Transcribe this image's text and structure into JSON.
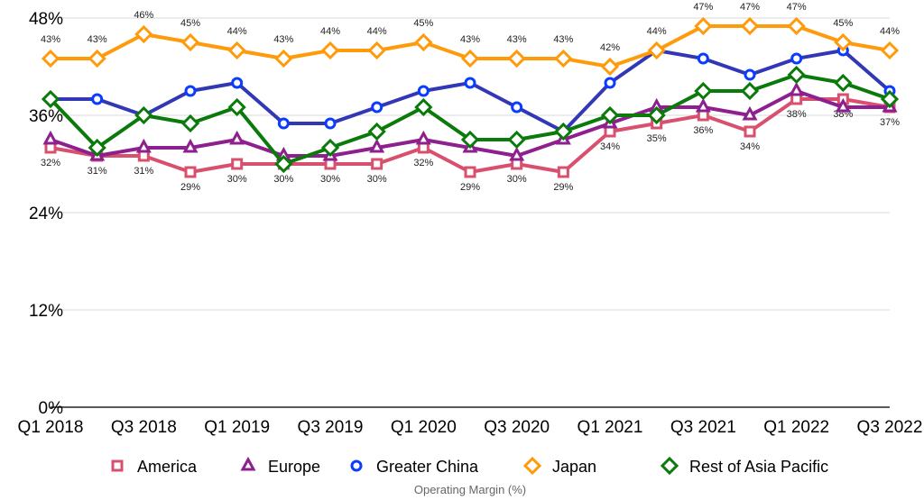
{
  "chart_data": {
    "type": "line",
    "title": "",
    "xlabel": "",
    "ylabel": "",
    "caption": "Operating Margin (%)",
    "ylim": [
      0,
      48
    ],
    "yticks": [
      0,
      12,
      24,
      36,
      48
    ],
    "ytick_labels": [
      "0%",
      "12%",
      "24%",
      "36%",
      "48%"
    ],
    "grid": true,
    "legend_position": "bottom",
    "x": [
      "Q1 2018",
      "Q2 2018",
      "Q3 2018",
      "Q4 2018",
      "Q1 2019",
      "Q2 2019",
      "Q3 2019",
      "Q4 2019",
      "Q1 2020",
      "Q2 2020",
      "Q3 2020",
      "Q4 2020",
      "Q1 2021",
      "Q2 2021",
      "Q3 2021",
      "Q4 2021",
      "Q1 2022",
      "Q2 2022",
      "Q3 2022"
    ],
    "xtick_labels": [
      "Q1 2018",
      "Q3 2018",
      "Q1 2019",
      "Q3 2019",
      "Q1 2020",
      "Q3 2020",
      "Q1 2021",
      "Q3 2021",
      "Q1 2022",
      "Q3 2022"
    ],
    "series": [
      {
        "name": "America",
        "color": "#d9506e",
        "marker": "square",
        "labels": "below",
        "values": [
          32,
          31,
          31,
          29,
          30,
          30,
          30,
          30,
          32,
          29,
          30,
          29,
          34,
          35,
          36,
          34,
          38,
          38,
          37
        ]
      },
      {
        "name": "Europe",
        "color": "#8e1f8e",
        "marker": "triangle",
        "labels": "none",
        "values": [
          33,
          31,
          32,
          32,
          33,
          31,
          31,
          32,
          33,
          32,
          31,
          33,
          35,
          37,
          37,
          36,
          39,
          37,
          37
        ]
      },
      {
        "name": "Greater China",
        "color": "#3238b5",
        "markerColor": "#0a3cff",
        "marker": "circle",
        "labels": "none",
        "values": [
          38,
          38,
          36,
          39,
          40,
          35,
          35,
          37,
          39,
          40,
          37,
          34,
          40,
          44,
          43,
          41,
          43,
          44,
          39
        ]
      },
      {
        "name": "Japan",
        "color": "#ff9a0a",
        "marker": "diamond",
        "labels": "above",
        "values": [
          43,
          43,
          46,
          45,
          44,
          43,
          44,
          44,
          45,
          43,
          43,
          43,
          42,
          44,
          47,
          47,
          47,
          45,
          44
        ]
      },
      {
        "name": "Rest of Asia Pacific",
        "color": "#0a7a0a",
        "marker": "diamond",
        "labels": "none",
        "values": [
          38,
          32,
          36,
          35,
          37,
          30,
          32,
          34,
          37,
          33,
          33,
          34,
          36,
          36,
          39,
          39,
          41,
          40,
          38
        ]
      }
    ]
  }
}
